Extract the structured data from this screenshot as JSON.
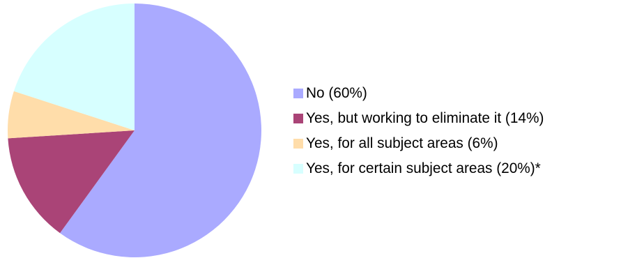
{
  "chart_data": {
    "type": "pie",
    "title": "",
    "start_angle_deg": 0,
    "direction": "clockwise",
    "slices": [
      {
        "label": "No (60%)",
        "value": 60,
        "color": "#aaaaff"
      },
      {
        "label": "Yes, but working to eliminate it (14%)",
        "value": 14,
        "color": "#aa4477"
      },
      {
        "label": "Yes, for all subject areas (6%)",
        "value": 6,
        "color": "#ffddaa"
      },
      {
        "label": "Yes, for certain subject areas (20%)*",
        "value": 20,
        "color": "#d7ffff"
      }
    ],
    "legend_position": "right"
  }
}
